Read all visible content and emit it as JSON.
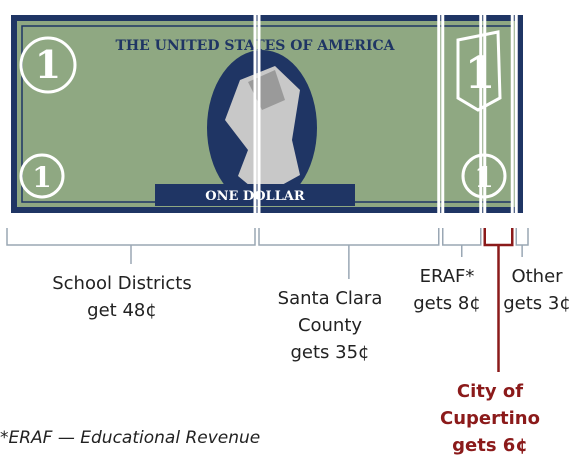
{
  "chart_data": {
    "type": "stacked-bar",
    "categories": [
      "School Districts",
      "Santa Clara County",
      "ERAF*",
      "City of Cupertino",
      "Other"
    ],
    "values": [
      48,
      35,
      8,
      6,
      3
    ],
    "value_labels": [
      "get 48¢",
      "gets 35¢",
      "gets 8¢",
      "gets 6¢",
      "gets 3¢"
    ],
    "colors": [
      "#9aa7b4",
      "#9aa7b4",
      "#9aa7b4",
      "#8b1a1a",
      "#9aa7b4"
    ],
    "highlight": 3,
    "footnote": "*ERAF — Educational Revenue"
  },
  "bill": {
    "header": "THE UNITED STATES OF AMERICA",
    "denomination": "ONE DOLLAR",
    "numeral": "1"
  }
}
